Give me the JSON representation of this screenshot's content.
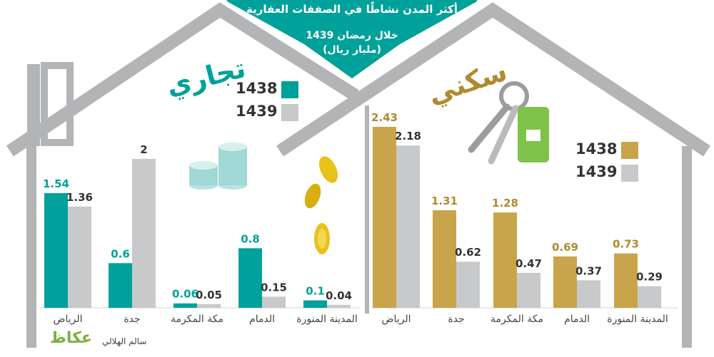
{
  "header": {
    "title": "أكثر المدن نشاطًا في الصفقات العقارية",
    "subtitle": "خلال رمضان 1439",
    "unit": "(مليار ريال)"
  },
  "colors": {
    "commercial_1438": "#00a19a",
    "residential_1438": "#c8a54a",
    "year_1439": "#c8c9cb",
    "house_outline": "#b2b4b6",
    "banner": "#00a19a",
    "residential_title": "#b08a2e",
    "commercial_title": "#00a19a"
  },
  "icons": [
    "coins-stack-icon",
    "gold-coins-icon",
    "house-keys-icon"
  ],
  "credit": {
    "author": "سالم الهلالي",
    "logo": "عكاظ"
  },
  "chart_data": [
    {
      "type": "bar",
      "title": "تجاري",
      "categories": [
        "الرياض",
        "جدة",
        "مكة المكرمة",
        "الدمام",
        "المدينة المنورة"
      ],
      "series": [
        {
          "name": "1438",
          "values": [
            1.54,
            0.6,
            0.06,
            0.8,
            0.1
          ]
        },
        {
          "name": "1439",
          "values": [
            1.36,
            2,
            0.05,
            0.15,
            0.04
          ]
        }
      ],
      "data_labels": [
        [
          "1.54",
          "0.6",
          "0.06",
          "0.8",
          "0.1"
        ],
        [
          "1.36",
          "2",
          "0.05",
          "0.15",
          "0.04"
        ]
      ],
      "legend": [
        "1438",
        "1439"
      ],
      "ylim": [
        0,
        2.43
      ],
      "grid": false
    },
    {
      "type": "bar",
      "title": "سكني",
      "categories": [
        "الرياض",
        "جدة",
        "مكة المكرمة",
        "الدمام",
        "المدينة المنورة"
      ],
      "series": [
        {
          "name": "1438",
          "values": [
            2.43,
            1.31,
            1.28,
            0.69,
            0.73
          ]
        },
        {
          "name": "1439",
          "values": [
            2.18,
            0.62,
            0.47,
            0.37,
            0.29
          ]
        }
      ],
      "data_labels": [
        [
          "2.43",
          "1.31",
          "1.28",
          "0.69",
          "0.73"
        ],
        [
          "2.18",
          "0.62",
          "0.47",
          "0.37",
          "0.29"
        ]
      ],
      "legend": [
        "1438",
        "1439"
      ],
      "ylim": [
        0,
        2.43
      ],
      "grid": false
    }
  ]
}
